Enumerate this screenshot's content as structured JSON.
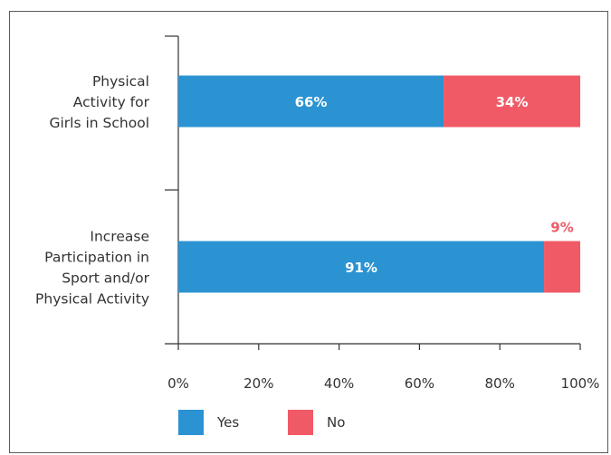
{
  "colors": {
    "yes": "#2b93d2",
    "no": "#f05a66",
    "axis": "#333333"
  },
  "chart_data": {
    "type": "bar",
    "orientation": "horizontal",
    "stacked": true,
    "title": "",
    "xlabel": "",
    "ylabel": "",
    "xlim": [
      0,
      100
    ],
    "x_ticks": [
      "0%",
      "20%",
      "40%",
      "60%",
      "80%",
      "100%"
    ],
    "x_tick_values": [
      0,
      20,
      40,
      60,
      80,
      100
    ],
    "grid": false,
    "legend_position": "bottom-left",
    "categories": [
      [
        "Physical",
        "Activity for",
        "Girls in School"
      ],
      [
        "Increase",
        "Participation in",
        "Sport and/or",
        "Physical Activity"
      ]
    ],
    "series": [
      {
        "name": "Yes",
        "values": [
          66,
          91
        ],
        "labels": [
          "66%",
          "91%"
        ]
      },
      {
        "name": "No",
        "values": [
          34,
          9
        ],
        "labels": [
          "34%",
          "9%"
        ]
      }
    ]
  }
}
